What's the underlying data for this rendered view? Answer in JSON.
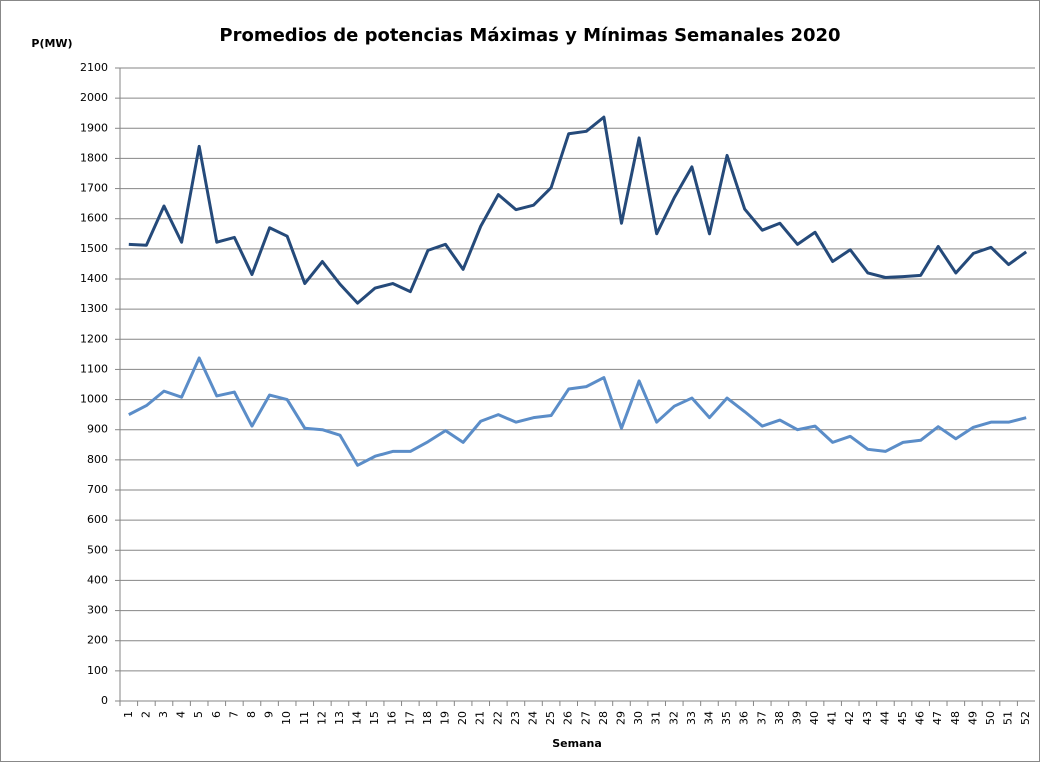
{
  "chart_data": {
    "type": "line",
    "title": "Promedios de potencias Máximas y Mínimas Semanales 2020",
    "y_label": "P(MW)",
    "x_label": "Semana",
    "categories": [
      "1",
      "2",
      "3",
      "4",
      "5",
      "6",
      "7",
      "8",
      "9",
      "10",
      "11",
      "12",
      "13",
      "14",
      "15",
      "16",
      "17",
      "18",
      "19",
      "20",
      "21",
      "22",
      "23",
      "24",
      "25",
      "26",
      "27",
      "28",
      "29",
      "30",
      "31",
      "32",
      "33",
      "34",
      "35",
      "36",
      "37",
      "38",
      "39",
      "40",
      "41",
      "42",
      "43",
      "44",
      "45",
      "46",
      "47",
      "48",
      "49",
      "50",
      "51",
      "52"
    ],
    "series": [
      {
        "color": "#254a7a",
        "values": [
          1515,
          1512,
          1642,
          1522,
          1840,
          1522,
          1538,
          1415,
          1570,
          1542,
          1385,
          1458,
          1383,
          1320,
          1370,
          1385,
          1358,
          1495,
          1515,
          1432,
          1575,
          1680,
          1630,
          1645,
          1703,
          1882,
          1890,
          1937,
          1585,
          1868,
          1550,
          1670,
          1772,
          1550,
          1810,
          1632,
          1562,
          1585,
          1515,
          1555,
          1458,
          1497,
          1420,
          1405,
          1408,
          1412,
          1508,
          1420,
          1485,
          1505,
          1448,
          1490
        ]
      },
      {
        "color": "#5b8dc8",
        "values": [
          950,
          980,
          1028,
          1008,
          1138,
          1012,
          1025,
          912,
          1015,
          1000,
          905,
          900,
          882,
          782,
          812,
          828,
          828,
          860,
          897,
          858,
          928,
          950,
          925,
          940,
          947,
          1035,
          1043,
          1073,
          905,
          1062,
          925,
          978,
          1005,
          940,
          1005,
          960,
          912,
          932,
          900,
          912,
          858,
          878,
          835,
          828,
          858,
          865,
          910,
          870,
          908,
          925,
          925,
          940
        ]
      }
    ],
    "ylim": [
      0,
      2100
    ],
    "yticks": [
      0,
      100,
      200,
      300,
      400,
      500,
      600,
      700,
      800,
      900,
      1000,
      1100,
      1200,
      1300,
      1400,
      1500,
      1600,
      1700,
      1800,
      1900,
      2000,
      2100
    ],
    "grid": true
  }
}
